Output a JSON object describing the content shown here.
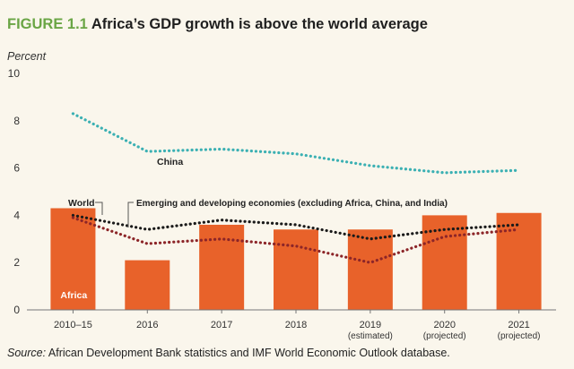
{
  "header": {
    "figure_label": "FIGURE 1.1",
    "title": "Africa’s GDP growth is above the world average"
  },
  "source": {
    "label": "Source:",
    "text": "African Development Bank statistics and IMF World Economic Outlook database."
  },
  "chart_data": {
    "type": "bar",
    "title": "Africa’s GDP growth is above the world average",
    "ylabel": "Percent",
    "xlabel": "",
    "ylim": [
      0,
      10
    ],
    "yticks": [
      0,
      2,
      4,
      6,
      8,
      10
    ],
    "grid": false,
    "categories": [
      {
        "label": "2010–15",
        "sub": ""
      },
      {
        "label": "2016",
        "sub": ""
      },
      {
        "label": "2017",
        "sub": ""
      },
      {
        "label": "2018",
        "sub": ""
      },
      {
        "label": "2019",
        "sub": "(estimated)"
      },
      {
        "label": "2020",
        "sub": "(projected)"
      },
      {
        "label": "2021",
        "sub": "(projected)"
      }
    ],
    "series": [
      {
        "name": "Africa",
        "kind": "bar",
        "color": "#e8622a",
        "values": [
          4.3,
          2.1,
          3.6,
          3.4,
          3.4,
          4.0,
          4.1
        ]
      },
      {
        "name": "China",
        "kind": "dotted-line",
        "color": "#3bb0b3",
        "values": [
          8.3,
          6.7,
          6.8,
          6.6,
          6.1,
          5.8,
          5.9
        ]
      },
      {
        "name": "World",
        "kind": "dotted-line",
        "color": "#1a1a1a",
        "values": [
          4.0,
          3.4,
          3.8,
          3.6,
          3.0,
          3.4,
          3.6
        ]
      },
      {
        "name": "Emerging and developing economies (excluding Africa, China, and India)",
        "kind": "dotted-line",
        "color": "#8c2528",
        "values": [
          3.9,
          2.8,
          3.0,
          2.7,
          2.0,
          3.1,
          3.4
        ]
      }
    ]
  }
}
